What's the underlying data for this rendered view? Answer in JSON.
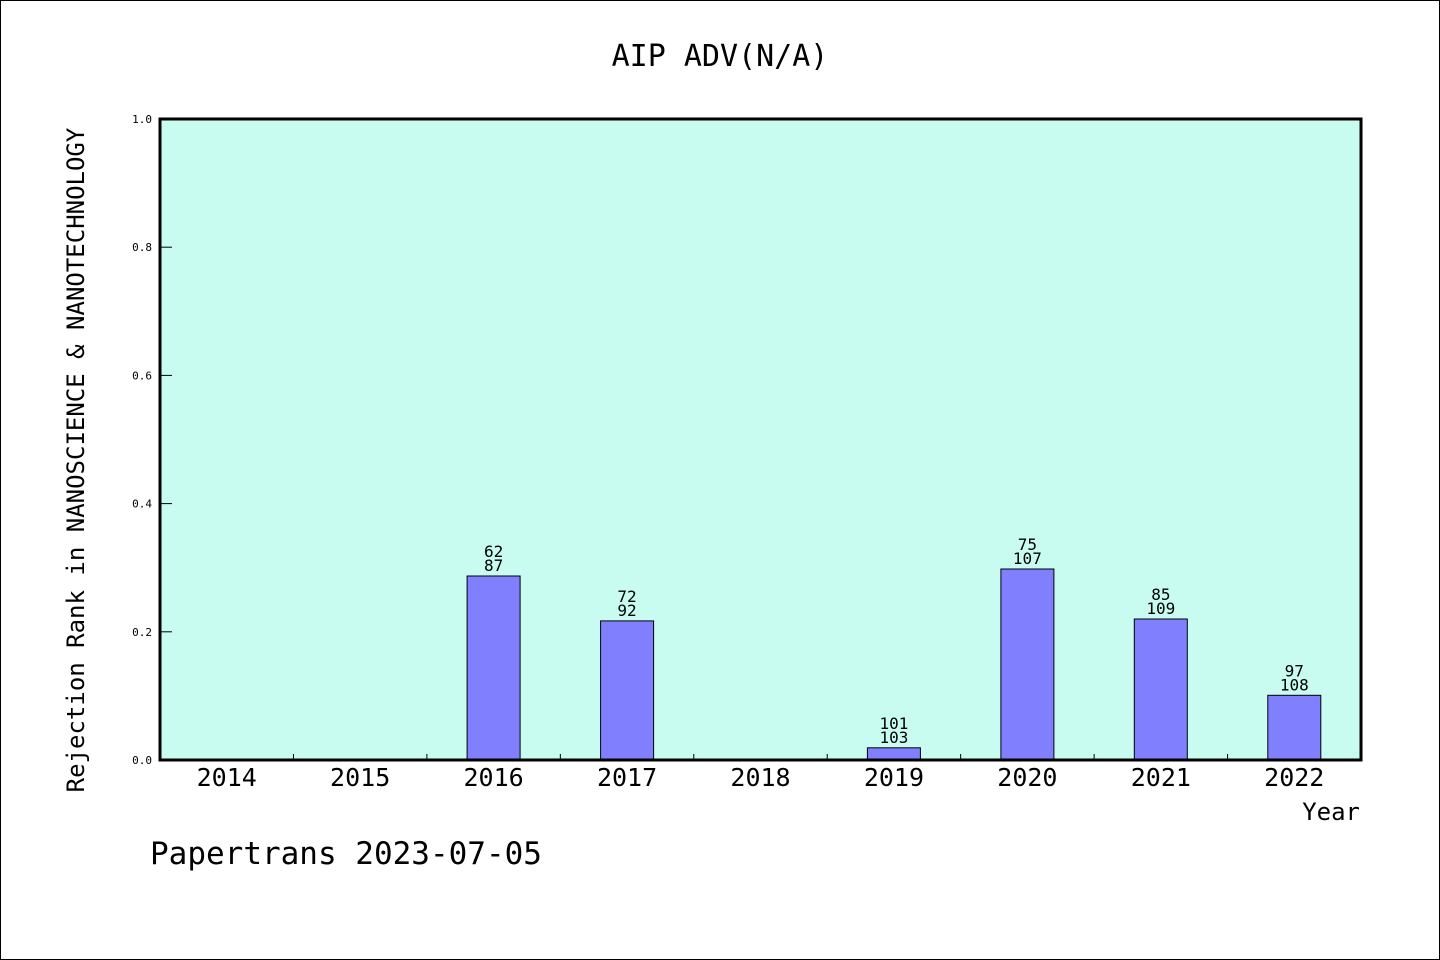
{
  "chart_data": {
    "type": "bar",
    "title": "AIP ADV(N/A)",
    "xlabel": "Year",
    "ylabel": "Rejection Rank in NANOSCIENCE & NANOTECHNOLOGY",
    "categories": [
      "2014",
      "2015",
      "2016",
      "2017",
      "2018",
      "2019",
      "2020",
      "2021",
      "2022"
    ],
    "values": [
      0,
      0,
      0.287,
      0.217,
      0,
      0.019,
      0.298,
      0.22,
      0.101
    ],
    "bar_labels": [
      null,
      null,
      [
        "62",
        "87"
      ],
      [
        "72",
        "92"
      ],
      null,
      [
        "101",
        "103"
      ],
      [
        "75",
        "107"
      ],
      [
        "85",
        "109"
      ],
      [
        "97",
        "108"
      ]
    ],
    "yticks": [
      "0.0",
      "0.2",
      "0.4",
      "0.6",
      "0.8",
      "1.0"
    ],
    "ylim": [
      0,
      1.0
    ],
    "grid": false,
    "colors": {
      "bar": "#8080ff",
      "plot_bg": "#c8fcf0",
      "axis": "#000000"
    }
  },
  "footer": "Papertrans 2023-07-05"
}
